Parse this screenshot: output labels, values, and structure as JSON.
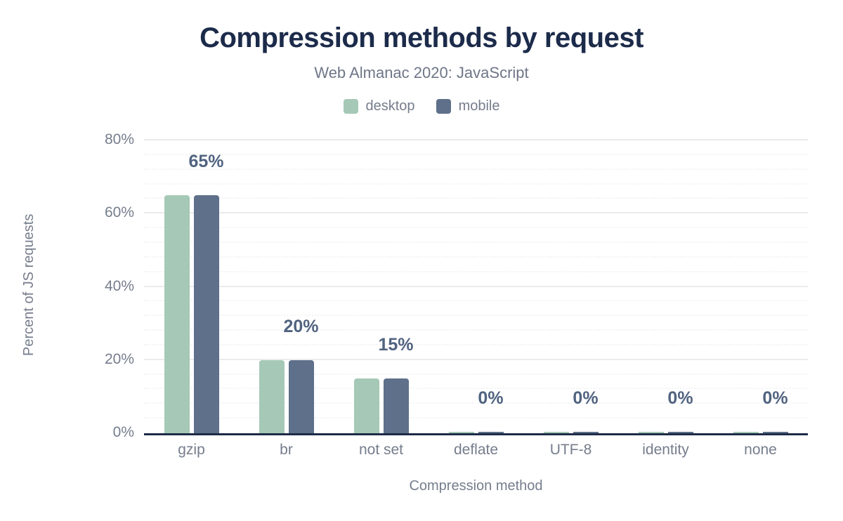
{
  "header": {
    "title": "Compression methods by request",
    "subtitle": "Web Almanac 2020: JavaScript"
  },
  "colors": {
    "title": "#1c2b4a",
    "muted_text": "#757d8c",
    "value_label": "#50637f",
    "axis_line": "#1e2b47",
    "major_gridline": "#ebebee",
    "minor_gridline": "#f3f3f6",
    "desktop": "#a5c9b6",
    "mobile": "#5e708a",
    "background": "#ffffff"
  },
  "chart_data": {
    "type": "bar",
    "title": "Compression methods by request",
    "subtitle": "Web Almanac 2020: JavaScript",
    "categories": [
      "gzip",
      "br",
      "not set",
      "deflate",
      "UTF-8",
      "identity",
      "none"
    ],
    "series": [
      {
        "name": "desktop",
        "color": "#a5c9b6",
        "values": [
          65,
          20,
          15,
          0,
          0,
          0,
          0
        ]
      },
      {
        "name": "mobile",
        "color": "#5e708a",
        "values": [
          65,
          20,
          15,
          0,
          0,
          0,
          0
        ]
      }
    ],
    "data_labels": [
      "65%",
      "20%",
      "15%",
      "0%",
      "0%",
      "0%",
      "0%"
    ],
    "xlabel": "Compression method",
    "ylabel": "Percent of JS requests",
    "ylim": [
      0,
      80
    ],
    "y_ticks": [
      {
        "label": "0%",
        "value": 0
      },
      {
        "label": "20%",
        "value": 20
      },
      {
        "label": "40%",
        "value": 40
      },
      {
        "label": "60%",
        "value": 60
      },
      {
        "label": "80%",
        "value": 80
      }
    ],
    "minor_grid_step": 4,
    "grid": true,
    "legend_position": "top"
  }
}
